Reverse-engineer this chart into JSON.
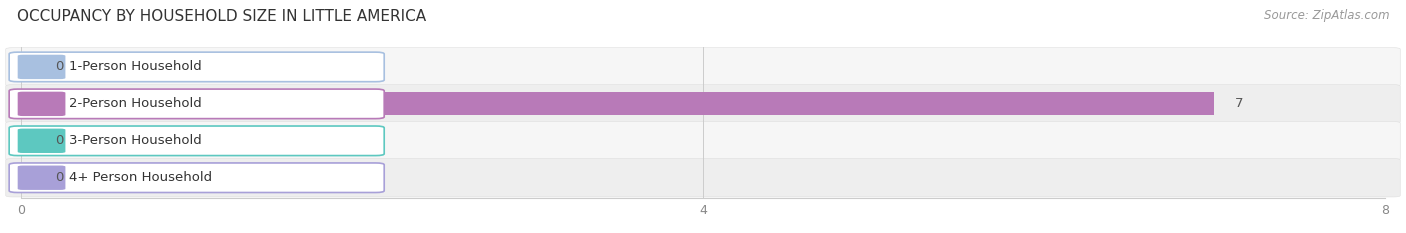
{
  "title": "OCCUPANCY BY HOUSEHOLD SIZE IN LITTLE AMERICA",
  "source": "Source: ZipAtlas.com",
  "categories": [
    "1-Person Household",
    "2-Person Household",
    "3-Person Household",
    "4+ Person Household"
  ],
  "values": [
    0,
    7,
    0,
    0
  ],
  "bar_colors": [
    "#a8c0e0",
    "#b87ab8",
    "#5dc8c0",
    "#a8a0d8"
  ],
  "label_border_colors": [
    "#a8c0e0",
    "#b87ab8",
    "#5dc8c0",
    "#a8a0d8"
  ],
  "label_accent_colors": [
    "#a8c0e0",
    "#b87ab8",
    "#5dc8c0",
    "#a8a0d8"
  ],
  "value_labels": [
    "0",
    "7",
    "0",
    "0"
  ],
  "xlim": [
    0,
    8
  ],
  "xticks": [
    0,
    4,
    8
  ],
  "bg_color": "#ffffff",
  "row_colors": [
    "#f5f5f5",
    "#eeeeee"
  ],
  "title_fontsize": 11,
  "source_fontsize": 8.5,
  "label_fontsize": 9.5,
  "value_fontsize": 9.5,
  "tick_fontsize": 9
}
